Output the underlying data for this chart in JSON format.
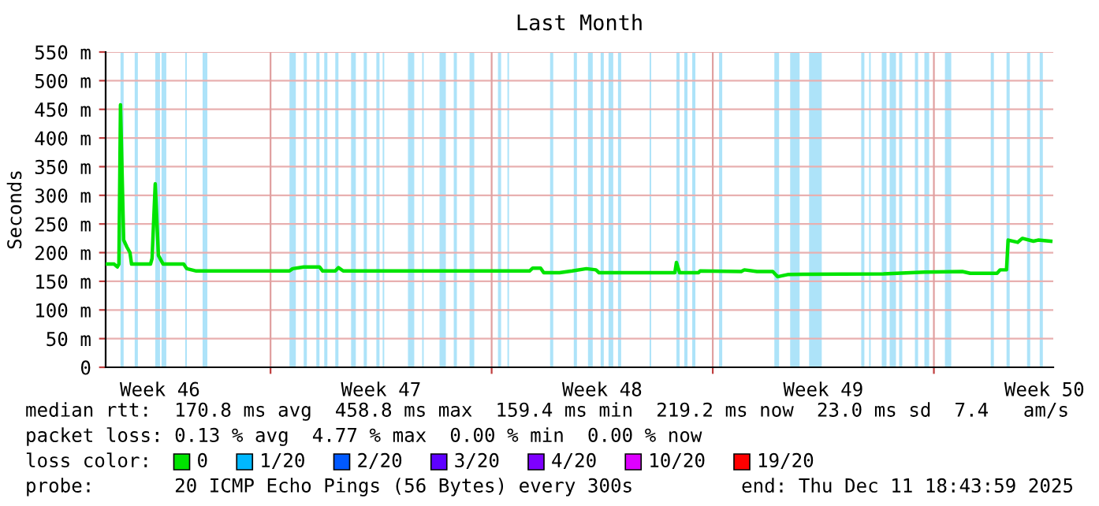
{
  "chart_data": {
    "type": "line",
    "title": "Last Month",
    "ylabel": "Seconds",
    "x": [
      "2025-11-11T18:48",
      "2025-11-12T01:12",
      "2025-11-12T03:36",
      "2025-11-12T04:48",
      "2025-11-12T06:00",
      "2025-11-12T08:24",
      "2025-11-12T10:48",
      "2025-11-12T13:12",
      "2025-11-12T14:24",
      "2025-11-13T04:48",
      "2025-11-13T06:00",
      "2025-11-13T08:24",
      "2025-11-13T10:48",
      "2025-11-13T14:24",
      "2025-11-14T06:00",
      "2025-11-14T08:24",
      "2025-11-14T15:36",
      "2025-11-17T14:24",
      "2025-11-17T16:48",
      "2025-11-18T01:12",
      "2025-11-18T13:12",
      "2025-11-18T15:36",
      "2025-11-19T01:12",
      "2025-11-19T03:36",
      "2025-11-19T07:12",
      "2025-11-25T04:48",
      "2025-11-25T07:12",
      "2025-11-25T13:12",
      "2025-11-25T15:36",
      "2025-11-26T03:36",
      "2025-11-26T13:12",
      "2025-11-27T00:00",
      "2025-11-27T07:12",
      "2025-11-27T09:36",
      "2025-11-29T19:12",
      "2025-11-29T20:24",
      "2025-11-29T22:48",
      "2025-11-30T13:12",
      "2025-11-30T14:24",
      "2025-12-01T21:36",
      "2025-12-02T00:00",
      "2025-12-02T09:36",
      "2025-12-02T21:36",
      "2025-12-03T01:12",
      "2025-12-03T09:36",
      "2025-12-06T09:36",
      "2025-12-07T16:48",
      "2025-12-08T21:36",
      "2025-12-09T03:36",
      "2025-12-10T00:00",
      "2025-12-10T02:24",
      "2025-12-10T07:12",
      "2025-12-10T08:24",
      "2025-12-10T15:36",
      "2025-12-10T19:12",
      "2025-12-11T03:36",
      "2025-12-11T07:12",
      "2025-12-11T16:48"
    ],
    "legend_title": "loss color:",
    "series": [
      {
        "name": "0",
        "color": "#00e400",
        "values": [
          180,
          180,
          175,
          180,
          458,
          222,
          210,
          200,
          180,
          180,
          190,
          320,
          195,
          180,
          180,
          172,
          168,
          168,
          172,
          175,
          175,
          168,
          168,
          174,
          168,
          168,
          173,
          173,
          165,
          165,
          168,
          172,
          170,
          165,
          165,
          183,
          165,
          165,
          168,
          167,
          170,
          167,
          167,
          158,
          162,
          163,
          166,
          167,
          164,
          164,
          170,
          170,
          222,
          218,
          225,
          220,
          222,
          220
        ]
      },
      {
        "name": "1/20",
        "color": "#00b8ff",
        "values": [
          null,
          null,
          null,
          null,
          null,
          null,
          null,
          null,
          null,
          null,
          null,
          null,
          null,
          null,
          null,
          null,
          null,
          null,
          null,
          null,
          null,
          null,
          null,
          null,
          null,
          null,
          null,
          null,
          null,
          null,
          null,
          null,
          null,
          null,
          null,
          null,
          null,
          null,
          null,
          null,
          null,
          null,
          null,
          null,
          null,
          null,
          null,
          null,
          null,
          null,
          null,
          null,
          null,
          null,
          null,
          null,
          null,
          null
        ]
      },
      {
        "name": "2/20",
        "color": "#0059ff",
        "values": [
          null,
          null,
          null,
          null,
          null,
          null,
          null,
          null,
          null,
          null,
          null,
          null,
          null,
          null,
          null,
          null,
          null,
          null,
          null,
          null,
          null,
          null,
          null,
          null,
          null,
          null,
          null,
          null,
          null,
          null,
          null,
          null,
          null,
          null,
          null,
          null,
          null,
          null,
          null,
          null,
          null,
          null,
          null,
          null,
          null,
          null,
          null,
          null,
          null,
          null,
          null,
          null,
          null,
          null,
          null,
          null,
          null,
          null
        ]
      },
      {
        "name": "3/20",
        "color": "#5e00ff",
        "values": [
          null,
          null,
          null,
          null,
          null,
          null,
          null,
          null,
          null,
          null,
          null,
          null,
          null,
          null,
          null,
          null,
          null,
          null,
          null,
          null,
          null,
          null,
          null,
          null,
          null,
          null,
          null,
          null,
          null,
          null,
          null,
          null,
          null,
          null,
          null,
          null,
          null,
          null,
          null,
          null,
          null,
          null,
          null,
          null,
          null,
          null,
          null,
          null,
          null,
          null,
          null,
          null,
          null,
          null,
          null,
          null,
          null,
          null
        ]
      },
      {
        "name": "4/20",
        "color": "#7e00ff",
        "values": [
          null,
          null,
          null,
          null,
          null,
          null,
          null,
          null,
          null,
          null,
          null,
          null,
          null,
          null,
          null,
          null,
          null,
          null,
          null,
          null,
          null,
          null,
          null,
          null,
          null,
          null,
          null,
          null,
          null,
          null,
          null,
          null,
          null,
          null,
          null,
          null,
          null,
          null,
          null,
          null,
          null,
          null,
          null,
          null,
          null,
          null,
          null,
          null,
          null,
          null,
          null,
          null,
          null,
          null,
          null,
          null,
          null,
          null
        ]
      },
      {
        "name": "10/20",
        "color": "#dd00ff",
        "values": [
          null,
          null,
          null,
          null,
          null,
          null,
          null,
          null,
          null,
          null,
          null,
          null,
          null,
          null,
          null,
          null,
          null,
          null,
          null,
          null,
          null,
          null,
          null,
          null,
          null,
          null,
          null,
          null,
          null,
          null,
          null,
          null,
          null,
          null,
          null,
          null,
          null,
          null,
          null,
          null,
          null,
          null,
          null,
          null,
          null,
          null,
          null,
          null,
          null,
          null,
          null,
          null,
          null,
          null,
          null,
          null,
          null,
          null
        ]
      },
      {
        "name": "19/20",
        "color": "#ff0000",
        "values": [
          null,
          null,
          null,
          null,
          null,
          null,
          null,
          null,
          null,
          null,
          null,
          null,
          null,
          null,
          null,
          null,
          null,
          null,
          null,
          null,
          null,
          null,
          null,
          null,
          null,
          null,
          null,
          null,
          null,
          null,
          null,
          null,
          null,
          null,
          null,
          null,
          null,
          null,
          null,
          null,
          null,
          null,
          null,
          null,
          null,
          null,
          null,
          null,
          null,
          null,
          null,
          null,
          null,
          null,
          null,
          null,
          null,
          null
        ]
      }
    ],
    "xlim": [
      "2025-11-11T18:43",
      "2025-12-11T18:43"
    ],
    "xticks": [
      {
        "value": "2025-11-13T12:00",
        "label": "Week 46"
      },
      {
        "value": "2025-11-17T00:00",
        "label": null
      },
      {
        "value": "2025-11-20T12:00",
        "label": "Week 47"
      },
      {
        "value": "2025-11-24T00:00",
        "label": null
      },
      {
        "value": "2025-11-27T12:00",
        "label": "Week 48"
      },
      {
        "value": "2025-12-01T00:00",
        "label": null
      },
      {
        "value": "2025-12-04T12:00",
        "label": "Week 49"
      },
      {
        "value": "2025-12-08T00:00",
        "label": null
      },
      {
        "value": "2025-12-11T12:00",
        "label": "Week 50"
      }
    ],
    "ylim": [
      0,
      550
    ],
    "yticks": [
      {
        "value": 0,
        "label": "0"
      },
      {
        "value": 50,
        "label": "50 m"
      },
      {
        "value": 100,
        "label": "100 m"
      },
      {
        "value": 150,
        "label": "150 m"
      },
      {
        "value": 200,
        "label": "200 m"
      },
      {
        "value": 250,
        "label": "250 m"
      },
      {
        "value": 300,
        "label": "300 m"
      },
      {
        "value": 350,
        "label": "350 m"
      },
      {
        "value": 400,
        "label": "400 m"
      },
      {
        "value": 450,
        "label": "450 m"
      },
      {
        "value": 500,
        "label": "500 m"
      },
      {
        "value": 550,
        "label": "550 m"
      }
    ],
    "grid": true,
    "legend": "bottom",
    "bands": [
      {
        "axis": "x",
        "from": "2025-11-12T06:00",
        "to": "2025-11-12T08:24",
        "color": "#ade3f9"
      },
      {
        "axis": "x",
        "from": "2025-11-12T16:48",
        "to": "2025-11-12T19:12",
        "color": "#ade3f9"
      },
      {
        "axis": "x",
        "from": "2025-11-13T08:24",
        "to": "2025-11-13T12:00",
        "color": "#ade3f9"
      },
      {
        "axis": "x",
        "from": "2025-11-13T13:12",
        "to": "2025-11-13T16:48",
        "color": "#ade3f9"
      },
      {
        "axis": "x",
        "from": "2025-11-14T07:12",
        "to": "2025-11-14T08:24",
        "color": "#ade3f9"
      },
      {
        "axis": "x",
        "from": "2025-11-14T20:24",
        "to": "2025-11-15T00:00",
        "color": "#ade3f9"
      },
      {
        "axis": "x",
        "from": "2025-11-17T14:24",
        "to": "2025-11-17T19:12",
        "color": "#ade3f9"
      },
      {
        "axis": "x",
        "from": "2025-11-18T01:12",
        "to": "2025-11-18T03:36",
        "color": "#ade3f9"
      },
      {
        "axis": "x",
        "from": "2025-11-18T10:48",
        "to": "2025-11-18T13:12",
        "color": "#ade3f9"
      },
      {
        "axis": "x",
        "from": "2025-11-18T16:48",
        "to": "2025-11-18T19:12",
        "color": "#ade3f9"
      },
      {
        "axis": "x",
        "from": "2025-11-19T01:12",
        "to": "2025-11-19T03:36",
        "color": "#ade3f9"
      },
      {
        "axis": "x",
        "from": "2025-11-19T13:12",
        "to": "2025-11-19T16:48",
        "color": "#ade3f9"
      },
      {
        "axis": "x",
        "from": "2025-11-19T22:48",
        "to": "2025-11-20T01:12",
        "color": "#ade3f9"
      },
      {
        "axis": "x",
        "from": "2025-11-20T08:24",
        "to": "2025-11-20T10:48",
        "color": "#ade3f9"
      },
      {
        "axis": "x",
        "from": "2025-11-20T13:12",
        "to": "2025-11-20T14:24",
        "color": "#ade3f9"
      },
      {
        "axis": "x",
        "from": "2025-11-21T08:24",
        "to": "2025-11-21T13:12",
        "color": "#ade3f9"
      },
      {
        "axis": "x",
        "from": "2025-11-21T19:12",
        "to": "2025-11-21T20:24",
        "color": "#ade3f9"
      },
      {
        "axis": "x",
        "from": "2025-11-22T08:24",
        "to": "2025-11-22T13:12",
        "color": "#ade3f9"
      },
      {
        "axis": "x",
        "from": "2025-11-22T19:12",
        "to": "2025-11-22T21:36",
        "color": "#ade3f9"
      },
      {
        "axis": "x",
        "from": "2025-11-23T07:12",
        "to": "2025-11-23T10:48",
        "color": "#ade3f9"
      },
      {
        "axis": "x",
        "from": "2025-11-24T04:48",
        "to": "2025-11-24T07:12",
        "color": "#ade3f9"
      },
      {
        "axis": "x",
        "from": "2025-11-24T12:00",
        "to": "2025-11-24T13:12",
        "color": "#ade3f9"
      },
      {
        "axis": "x",
        "from": "2025-11-25T20:24",
        "to": "2025-11-25T22:48",
        "color": "#ade3f9"
      },
      {
        "axis": "x",
        "from": "2025-11-26T14:24",
        "to": "2025-11-26T16:48",
        "color": "#ade3f9"
      },
      {
        "axis": "x",
        "from": "2025-11-27T01:12",
        "to": "2025-11-27T04:48",
        "color": "#ade3f9"
      },
      {
        "axis": "x",
        "from": "2025-11-27T10:48",
        "to": "2025-11-27T13:12",
        "color": "#ade3f9"
      },
      {
        "axis": "x",
        "from": "2025-11-27T16:48",
        "to": "2025-11-27T20:24",
        "color": "#ade3f9"
      },
      {
        "axis": "x",
        "from": "2025-11-28T00:00",
        "to": "2025-11-28T02:24",
        "color": "#ade3f9"
      },
      {
        "axis": "x",
        "from": "2025-11-29T00:00",
        "to": "2025-11-29T01:12",
        "color": "#ade3f9"
      },
      {
        "axis": "x",
        "from": "2025-11-29T20:24",
        "to": "2025-11-29T22:48",
        "color": "#ade3f9"
      },
      {
        "axis": "x",
        "from": "2025-11-30T02:24",
        "to": "2025-11-30T04:48",
        "color": "#ade3f9"
      },
      {
        "axis": "x",
        "from": "2025-11-30T08:24",
        "to": "2025-11-30T10:48",
        "color": "#ade3f9"
      },
      {
        "axis": "x",
        "from": "2025-12-01T04:48",
        "to": "2025-12-01T07:12",
        "color": "#ade3f9"
      },
      {
        "axis": "x",
        "from": "2025-12-02T22:48",
        "to": "2025-12-03T02:24",
        "color": "#ade3f9"
      },
      {
        "axis": "x",
        "from": "2025-12-03T10:48",
        "to": "2025-12-03T18:00",
        "color": "#ade3f9"
      },
      {
        "axis": "x",
        "from": "2025-12-04T01:12",
        "to": "2025-12-04T10:48",
        "color": "#ade3f9"
      },
      {
        "axis": "x",
        "from": "2025-12-05T16:48",
        "to": "2025-12-05T19:12",
        "color": "#ade3f9"
      },
      {
        "axis": "x",
        "from": "2025-12-05T22:48",
        "to": "2025-12-06T00:00",
        "color": "#ade3f9"
      },
      {
        "axis": "x",
        "from": "2025-12-06T08:24",
        "to": "2025-12-06T12:00",
        "color": "#ade3f9"
      },
      {
        "axis": "x",
        "from": "2025-12-06T14:24",
        "to": "2025-12-06T19:12",
        "color": "#ade3f9"
      },
      {
        "axis": "x",
        "from": "2025-12-06T21:36",
        "to": "2025-12-07T00:00",
        "color": "#ade3f9"
      },
      {
        "axis": "x",
        "from": "2025-12-07T09:36",
        "to": "2025-12-07T12:00",
        "color": "#ade3f9"
      },
      {
        "axis": "x",
        "from": "2025-12-07T16:48",
        "to": "2025-12-07T20:24",
        "color": "#ade3f9"
      },
      {
        "axis": "x",
        "from": "2025-12-08T08:24",
        "to": "2025-12-08T13:12",
        "color": "#ade3f9"
      },
      {
        "axis": "x",
        "from": "2025-12-09T19:12",
        "to": "2025-12-09T21:36",
        "color": "#ade3f9"
      },
      {
        "axis": "x",
        "from": "2025-12-10T07:12",
        "to": "2025-12-10T09:36",
        "color": "#ade3f9"
      },
      {
        "axis": "x",
        "from": "2025-12-10T22:48",
        "to": "2025-12-11T01:12",
        "color": "#ade3f9"
      },
      {
        "axis": "x",
        "from": "2025-12-11T08:24",
        "to": "2025-12-11T10:48",
        "color": "#ade3f9"
      }
    ],
    "annotations": [
      "median rtt:  170.8 ms avg  458.8 ms max  159.4 ms min  219.2 ms now  23.0 ms sd  7.4   am/s",
      "packet loss: 0.13 % avg  4.77 % max  0.00 % min  0.00 % now",
      "probe:       20 ICMP Echo Pings (56 Bytes) every 300s",
      "end: Thu Dec 11 18:43:59 2025"
    ]
  }
}
